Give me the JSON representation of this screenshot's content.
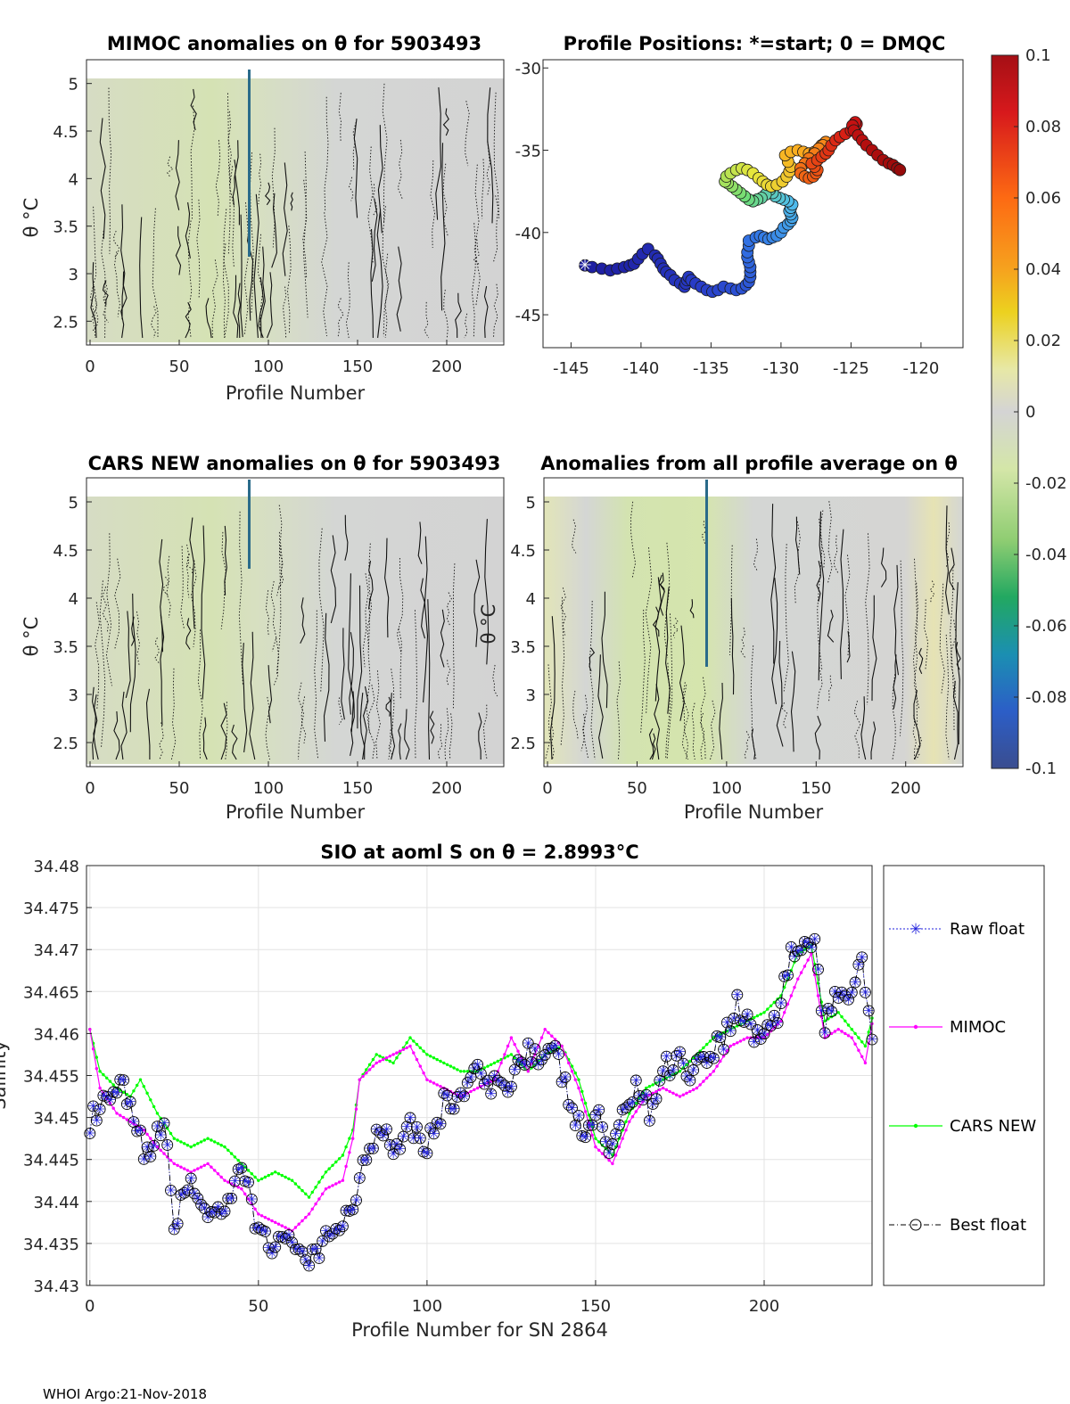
{
  "colors": {
    "raw": "#1f1fdc",
    "mimoc": "#ff00ff",
    "cars": "#00ff00",
    "best": "#000000",
    "field": "#d4d6d4",
    "field_green": "#d5e3b2",
    "contour": "#000000"
  },
  "footer": "WHOI Argo:21-Nov-2018",
  "chart_data": [
    {
      "id": "mimoc",
      "type": "heatmap",
      "title": "MIMOC anomalies on θ  for 5903493",
      "xlabel": "Profile Number",
      "ylabel": "θ °C",
      "xlim": [
        -2,
        232
      ],
      "ylim": [
        2.25,
        5.25
      ],
      "xticks": [
        "0",
        "50",
        "100",
        "150",
        "200"
      ],
      "yticks": [
        "2.5",
        "3",
        "3.5",
        "4",
        "4.5",
        "5"
      ]
    },
    {
      "id": "positions",
      "type": "scatter",
      "title": "Profile Positions: *=start; 0 = DMQC",
      "xlim": [
        -147,
        -117
      ],
      "ylim": [
        -47,
        -29.5
      ],
      "xticks": [
        "-145",
        "-140",
        "-135",
        "-130",
        "-125",
        "-120"
      ],
      "yticks": [
        "-30",
        "-35",
        "-40",
        "-45"
      ],
      "lon": [
        -144,
        -143.5,
        -142.8,
        -142.2,
        -141.7,
        -141.2,
        -140.8,
        -140.5,
        -140.2,
        -139.9,
        -139.5,
        -139,
        -138.8,
        -138.6,
        -138.4,
        -138.2,
        -137.9,
        -137.6,
        -137.2,
        -136.9,
        -136.8,
        -136.7,
        -136.6,
        -136.4,
        -136.1,
        -135.7,
        -135.3,
        -134.9,
        -134.5,
        -134.1,
        -133.6,
        -133.2,
        -132.8,
        -132.5,
        -132.3,
        -132.2,
        -132.2,
        -132.2,
        -132.3,
        -132.4,
        -132.4,
        -132.3,
        -132.3,
        -131.8,
        -131.5,
        -131.2,
        -130.9,
        -130.6,
        -130.3,
        -130,
        -129.8,
        -129.5,
        -129.3,
        -129.2,
        -129.3,
        -129.4,
        -129.3,
        -129.2,
        -129.5,
        -129.8,
        -130.1,
        -130.4,
        -130.6,
        -130.8,
        -131.1,
        -131.4,
        -131.7,
        -132,
        -132.3,
        -132.6,
        -132.9,
        -133.2,
        -133.5,
        -133.8,
        -134,
        -133.9,
        -133.6,
        -133.2,
        -132.8,
        -132.4,
        -132,
        -131.6,
        -131.3,
        -131,
        -130.7,
        -130.3,
        -129.9,
        -129.6,
        -129.4,
        -129.3,
        -129.5,
        -129.7,
        -129.3,
        -128.8,
        -128.4,
        -128,
        -127.6,
        -127.3,
        -127.1,
        -126.9,
        -126.8,
        -127,
        -127.3,
        -127.6,
        -128,
        -128.3,
        -128.6,
        -128.6,
        -128.3,
        -128,
        -127.7,
        -127.5,
        -127.4,
        -127.6,
        -127.8,
        -127.4,
        -127.1,
        -126.8,
        -126.6,
        -126.4,
        -126.1,
        -125.8,
        -125.4,
        -125,
        -124.7,
        -124.6,
        -124.7,
        -124.9,
        -124.8,
        -124.5,
        -124.2,
        -123.9,
        -123.5,
        -123.1,
        -122.7,
        -122.3,
        -122,
        -121.7,
        -121.5
      ],
      "lat": [
        -42,
        -42.1,
        -42.2,
        -42.3,
        -42.2,
        -42.1,
        -42,
        -41.9,
        -41.6,
        -41.3,
        -41,
        -41.4,
        -41.6,
        -41.9,
        -42.2,
        -42.4,
        -42.6,
        -42.9,
        -43.1,
        -43.3,
        -43.1,
        -42.9,
        -42.7,
        -42.9,
        -43.1,
        -43.3,
        -43.5,
        -43.6,
        -43.5,
        -43.3,
        -43.4,
        -43.5,
        -43.4,
        -43.2,
        -43,
        -42.7,
        -42.4,
        -42.1,
        -41.8,
        -41.5,
        -41.2,
        -40.8,
        -40.5,
        -40.3,
        -40.2,
        -40.3,
        -40.4,
        -40.3,
        -40.2,
        -40,
        -39.7,
        -39.5,
        -39.3,
        -39.1,
        -38.9,
        -38.7,
        -38.5,
        -38.3,
        -38.1,
        -38,
        -37.9,
        -37.8,
        -37.6,
        -37.4,
        -37.7,
        -37.9,
        -38,
        -38.1,
        -38,
        -37.8,
        -37.6,
        -37.4,
        -37.2,
        -37,
        -36.9,
        -36.6,
        -36.4,
        -36.2,
        -36.1,
        -36.2,
        -36.4,
        -36.7,
        -36.9,
        -37.1,
        -37.2,
        -37.1,
        -36.9,
        -36.6,
        -36.3,
        -36,
        -35.7,
        -35.3,
        -35.1,
        -35,
        -35.1,
        -35.2,
        -35.1,
        -34.9,
        -34.7,
        -34.6,
        -34.5,
        -34.7,
        -34.9,
        -35.2,
        -35.5,
        -35.8,
        -36.1,
        -36.4,
        -36.6,
        -36.7,
        -36.6,
        -36.4,
        -36.2,
        -36,
        -35.8,
        -35.6,
        -35.4,
        -35.2,
        -35,
        -34.7,
        -34.4,
        -34.2,
        -34,
        -33.8,
        -33.6,
        -33.4,
        -33.3,
        -33.5,
        -33.8,
        -34.1,
        -34.4,
        -34.7,
        -35,
        -35.3,
        -35.6,
        -35.8,
        -35.9,
        -36.1,
        -36.2
      ]
    },
    {
      "id": "cars",
      "type": "heatmap",
      "title": "CARS NEW anomalies on θ for 5903493",
      "xlabel": "Profile Number",
      "ylabel": "θ °C",
      "xlim": [
        -2,
        232
      ],
      "ylim": [
        2.25,
        5.25
      ],
      "xticks": [
        "0",
        "50",
        "100",
        "150",
        "200"
      ],
      "yticks": [
        "2.5",
        "3",
        "3.5",
        "4",
        "4.5",
        "5"
      ]
    },
    {
      "id": "avg",
      "type": "heatmap",
      "title": "Anomalies from all profile average on θ",
      "xlabel": "Profile Number",
      "ylabel": "θ °C",
      "xlim": [
        -2,
        232
      ],
      "ylim": [
        2.25,
        5.25
      ],
      "xticks": [
        "0",
        "50",
        "100",
        "150",
        "200"
      ],
      "yticks": [
        "2.5",
        "3",
        "3.5",
        "4",
        "4.5",
        "5"
      ]
    },
    {
      "id": "colorbar",
      "type": "heatmap",
      "ticks": [
        "0.1",
        "0.08",
        "0.06",
        "0.04",
        "0.02",
        "0",
        "-0.02",
        "-0.04",
        "-0.06",
        "-0.08",
        "-0.1"
      ],
      "range": [
        -0.1,
        0.1
      ]
    },
    {
      "id": "salinity",
      "type": "line",
      "title": "SIO at aoml S on θ = 2.8993°C",
      "xlabel": "Profile Number for SN 2864",
      "ylabel": "Salinity",
      "xlim": [
        -1,
        232
      ],
      "ylim": [
        34.43,
        34.48
      ],
      "xticks": [
        "0",
        "50",
        "100",
        "150",
        "200"
      ],
      "yticks": [
        "34.43",
        "34.435",
        "34.44",
        "34.445",
        "34.45",
        "34.455",
        "34.46",
        "34.465",
        "34.47",
        "34.475",
        "34.48"
      ],
      "legend": [
        "Raw float",
        "MIMOC",
        "CARS NEW",
        "Best float"
      ],
      "anchors": {
        "best": [
          [
            0,
            34.4495
          ],
          [
            5,
            34.4515
          ],
          [
            10,
            34.4535
          ],
          [
            14,
            34.4475
          ],
          [
            18,
            34.4455
          ],
          [
            22,
            34.4495
          ],
          [
            25,
            34.4375
          ],
          [
            30,
            34.4425
          ],
          [
            35,
            34.4385
          ],
          [
            40,
            34.4375
          ],
          [
            45,
            34.4445
          ],
          [
            49,
            34.4375
          ],
          [
            53,
            34.4355
          ],
          [
            58,
            34.4345
          ],
          [
            62,
            34.4355
          ],
          [
            65,
            34.4325
          ],
          [
            68,
            34.4335
          ],
          [
            72,
            34.4365
          ],
          [
            78,
            34.4395
          ],
          [
            82,
            34.4455
          ],
          [
            86,
            34.4495
          ],
          [
            90,
            34.4465
          ],
          [
            95,
            34.4495
          ],
          [
            100,
            34.4465
          ],
          [
            105,
            34.4515
          ],
          [
            110,
            34.4525
          ],
          [
            114,
            34.4555
          ],
          [
            118,
            34.4535
          ],
          [
            122,
            34.4535
          ],
          [
            126,
            34.4555
          ],
          [
            130,
            34.4585
          ],
          [
            134,
            34.4565
          ],
          [
            138,
            34.4575
          ],
          [
            142,
            34.4525
          ],
          [
            146,
            34.4475
          ],
          [
            150,
            34.4505
          ],
          [
            154,
            34.4465
          ],
          [
            158,
            34.4495
          ],
          [
            162,
            34.4545
          ],
          [
            166,
            34.4505
          ],
          [
            170,
            34.4555
          ],
          [
            174,
            34.4575
          ],
          [
            178,
            34.4555
          ],
          [
            183,
            34.4575
          ],
          [
            188,
            34.4595
          ],
          [
            192,
            34.4635
          ],
          [
            196,
            34.4605
          ],
          [
            200,
            34.4595
          ],
          [
            204,
            34.4625
          ],
          [
            208,
            34.4695
          ],
          [
            212,
            34.4705
          ],
          [
            215,
            34.4705
          ],
          [
            218,
            34.4605
          ],
          [
            222,
            34.4645
          ],
          [
            226,
            34.4655
          ],
          [
            229,
            34.4695
          ],
          [
            232,
            34.4595
          ]
        ],
        "mimoc": [
          [
            0,
            34.4605
          ],
          [
            3,
            34.4535
          ],
          [
            8,
            34.4505
          ],
          [
            12,
            34.4495
          ],
          [
            16,
            34.4485
          ],
          [
            20,
            34.4465
          ],
          [
            25,
            34.4445
          ],
          [
            30,
            34.4435
          ],
          [
            35,
            34.4445
          ],
          [
            40,
            34.4425
          ],
          [
            45,
            34.4415
          ],
          [
            50,
            34.4385
          ],
          [
            55,
            34.4375
          ],
          [
            60,
            34.4365
          ],
          [
            65,
            34.4385
          ],
          [
            70,
            34.4415
          ],
          [
            75,
            34.4425
          ],
          [
            78,
            34.4475
          ],
          [
            80,
            34.4545
          ],
          [
            85,
            34.4565
          ],
          [
            90,
            34.4575
          ],
          [
            95,
            34.4585
          ],
          [
            100,
            34.4545
          ],
          [
            105,
            34.4535
          ],
          [
            110,
            34.4525
          ],
          [
            115,
            34.4535
          ],
          [
            120,
            34.4545
          ],
          [
            125,
            34.4595
          ],
          [
            130,
            34.4555
          ],
          [
            135,
            34.4605
          ],
          [
            140,
            34.4585
          ],
          [
            145,
            34.4535
          ],
          [
            150,
            34.4465
          ],
          [
            155,
            34.4445
          ],
          [
            160,
            34.4495
          ],
          [
            165,
            34.4525
          ],
          [
            170,
            34.4535
          ],
          [
            175,
            34.4525
          ],
          [
            180,
            34.4535
          ],
          [
            185,
            34.4555
          ],
          [
            190,
            34.4585
          ],
          [
            195,
            34.4595
          ],
          [
            200,
            34.4595
          ],
          [
            205,
            34.4615
          ],
          [
            210,
            34.4665
          ],
          [
            214,
            34.4695
          ],
          [
            218,
            34.4595
          ],
          [
            222,
            34.4605
          ],
          [
            226,
            34.4595
          ],
          [
            230,
            34.4565
          ],
          [
            233,
            34.4635
          ]
        ],
        "cars": [
          [
            0,
            34.4605
          ],
          [
            3,
            34.4555
          ],
          [
            8,
            34.4535
          ],
          [
            12,
            34.4525
          ],
          [
            15,
            34.4545
          ],
          [
            20,
            34.4505
          ],
          [
            25,
            34.4475
          ],
          [
            30,
            34.4465
          ],
          [
            35,
            34.4475
          ],
          [
            40,
            34.4465
          ],
          [
            45,
            34.4445
          ],
          [
            50,
            34.4425
          ],
          [
            55,
            34.4435
          ],
          [
            60,
            34.4425
          ],
          [
            65,
            34.4405
          ],
          [
            70,
            34.4435
          ],
          [
            75,
            34.4455
          ],
          [
            78,
            34.4485
          ],
          [
            80,
            34.4545
          ],
          [
            85,
            34.4575
          ],
          [
            90,
            34.4565
          ],
          [
            95,
            34.4595
          ],
          [
            100,
            34.4575
          ],
          [
            105,
            34.4565
          ],
          [
            110,
            34.4555
          ],
          [
            115,
            34.4555
          ],
          [
            120,
            34.4565
          ],
          [
            125,
            34.4575
          ],
          [
            130,
            34.4555
          ],
          [
            135,
            34.4575
          ],
          [
            140,
            34.4585
          ],
          [
            145,
            34.4545
          ],
          [
            150,
            34.4475
          ],
          [
            155,
            34.4455
          ],
          [
            160,
            34.4505
          ],
          [
            165,
            34.4535
          ],
          [
            170,
            34.4545
          ],
          [
            175,
            34.4555
          ],
          [
            180,
            34.4575
          ],
          [
            185,
            34.4595
          ],
          [
            190,
            34.4605
          ],
          [
            195,
            34.4615
          ],
          [
            200,
            34.4625
          ],
          [
            205,
            34.4645
          ],
          [
            210,
            34.4695
          ],
          [
            214,
            34.4705
          ],
          [
            218,
            34.4615
          ],
          [
            222,
            34.4625
          ],
          [
            226,
            34.4605
          ],
          [
            230,
            34.4585
          ],
          [
            233,
            34.4635
          ]
        ]
      }
    }
  ]
}
